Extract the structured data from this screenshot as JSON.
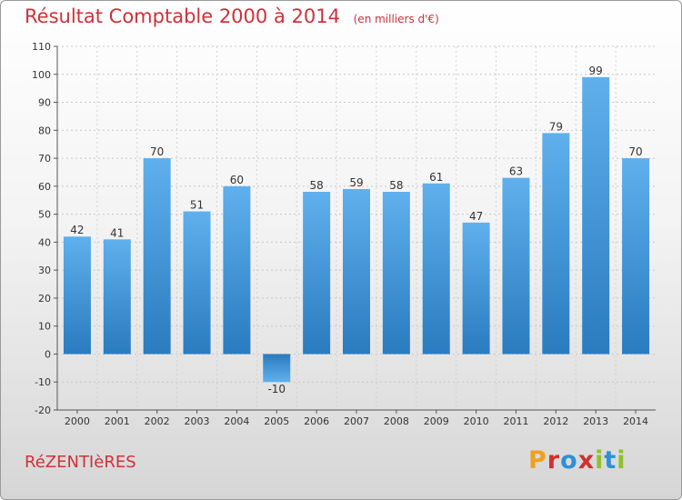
{
  "header": {
    "title": "Résultat Comptable 2000 à 2014",
    "subtitle": "(en milliers d'€)"
  },
  "footer": {
    "commune": "RéZENTIèRES",
    "brand": "Proxiti",
    "brand_colors": [
      "#f0a020",
      "#d03030",
      "#2e8fd6",
      "#d03030",
      "#8fc02a",
      "#2e8fd6",
      "#8fc02a"
    ]
  },
  "chart_data": {
    "type": "bar",
    "title": "Résultat Comptable 2000 à 2014",
    "xlabel": "",
    "ylabel": "",
    "ylim": [
      -20,
      110
    ],
    "yticks": [
      -20,
      -10,
      0,
      10,
      20,
      30,
      40,
      50,
      60,
      70,
      80,
      90,
      100,
      110
    ],
    "grid": true,
    "categories": [
      "2000",
      "2001",
      "2002",
      "2003",
      "2004",
      "2005",
      "2006",
      "2007",
      "2008",
      "2009",
      "2010",
      "2011",
      "2012",
      "2013",
      "2014"
    ],
    "values": [
      42,
      41,
      70,
      51,
      60,
      -10,
      58,
      59,
      58,
      61,
      47,
      63,
      79,
      99,
      70
    ],
    "bar_color": "#3a8fd4"
  }
}
